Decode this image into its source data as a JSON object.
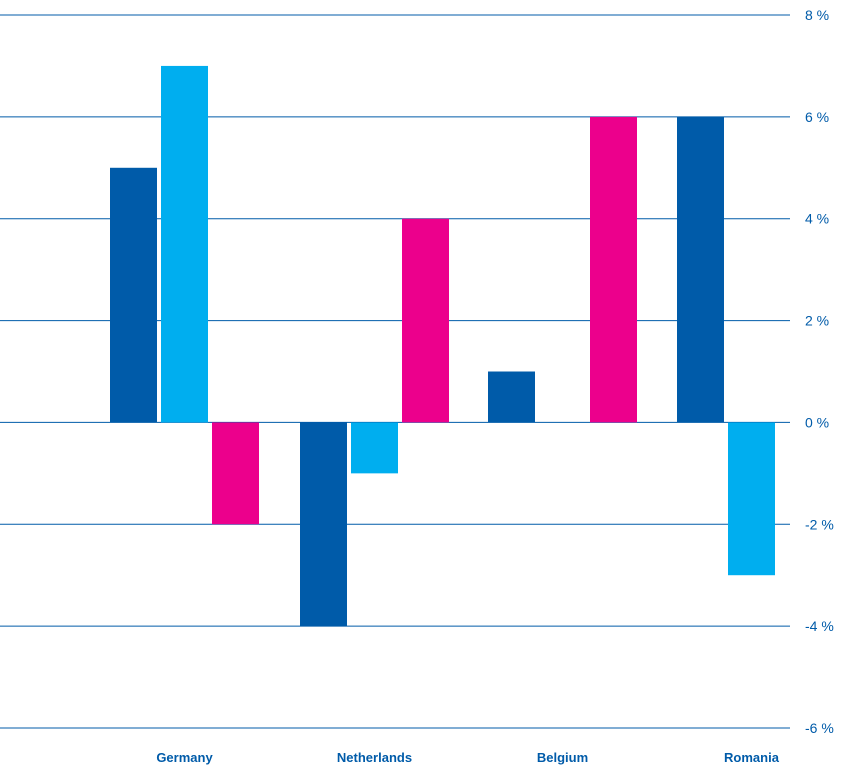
{
  "chart_data": {
    "type": "bar",
    "categories": [
      "Germany",
      "Netherlands",
      "Belgium",
      "Romania"
    ],
    "series": [
      {
        "values": [
          5,
          -4,
          1,
          6
        ]
      },
      {
        "values": [
          7,
          -1,
          0,
          -3
        ]
      },
      {
        "values": [
          -2,
          4,
          6,
          null
        ]
      }
    ],
    "ylim": [
      -6,
      8
    ],
    "yticks": [
      -6,
      -4,
      -2,
      0,
      2,
      4,
      6,
      8
    ],
    "ytick_labels": [
      "-6 %",
      "-4 %",
      "-2 %",
      "0 %",
      "2 %",
      "4 %",
      "6 %",
      "8 %"
    ],
    "grid": true,
    "colors": [
      "#005ba9",
      "#00aeef",
      "#ec008c"
    ],
    "text_color": "#005ba9",
    "grid_color": "#005ba9"
  }
}
